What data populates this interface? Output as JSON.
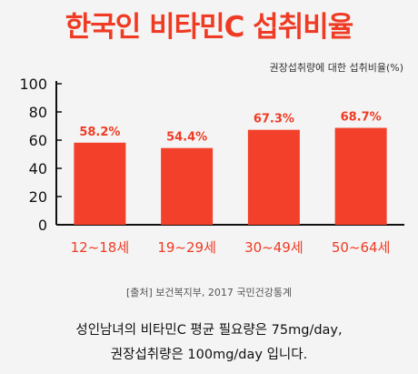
{
  "title": "한국인 비타민C 섭취비율",
  "unit_label": "권장섭취량에 대한 섭취비율(%)",
  "source": "[출처] 보건복지부, 2017 국민건강통계",
  "note_line1": "성인남녀의 비타민C 평균 필요량은 75mg/day,",
  "note_line2": "권장섭취량은 100mg/day 입니다.",
  "colors": {
    "accent": "#ef3b24",
    "bar": "#f3402a",
    "axis": "#111111"
  },
  "chart_data": {
    "type": "bar",
    "title": "한국인 비타민C 섭취비율",
    "ylabel": "권장섭취량에 대한 섭취비율(%)",
    "xlabel": "",
    "categories": [
      "12~18세",
      "19~29세",
      "30~49세",
      "50~64세"
    ],
    "values": [
      58.2,
      54.4,
      67.3,
      68.7
    ],
    "value_labels": [
      "58.2%",
      "54.4%",
      "67.3%",
      "68.7%"
    ],
    "ylim": [
      0,
      100
    ],
    "yticks": [
      "0",
      "20",
      "40",
      "60",
      "80",
      "100"
    ],
    "grid": false
  }
}
